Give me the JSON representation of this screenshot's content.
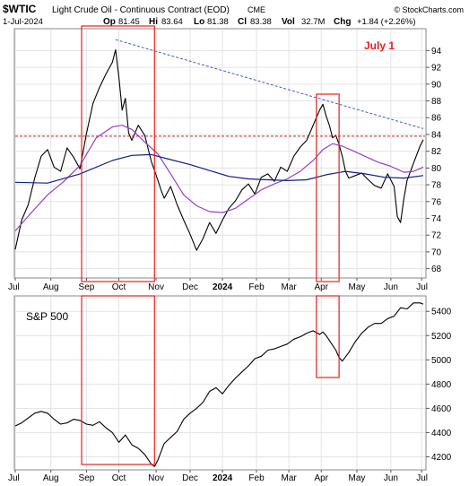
{
  "header": {
    "symbol": "$WTIC",
    "name": "Light Crude Oil - Continuous Contract (EOD)",
    "exchange": "CME",
    "copyright": "© StockCharts.com",
    "date": "1-Jul-2024",
    "open_label": "Op",
    "open": "81.45",
    "high_label": "Hi",
    "high": "83.64",
    "low_label": "Lo",
    "low": "81.38",
    "close_label": "Cl",
    "close": "83.38",
    "vol_label": "Vol",
    "vol": "32.7M",
    "chg_label": "Chg",
    "chg": "+1.84 (+2.26%)"
  },
  "annotation": {
    "label": "July 1",
    "color": "#e8201c"
  },
  "colors": {
    "price": "#000000",
    "ma50": "#9b3fc4",
    "ma200": "#0c1f87",
    "trendline": "#3b5bd9",
    "resistance": "#d42020",
    "box": "#e8201c"
  },
  "x_labels": [
    {
      "t": 0,
      "label": "Jul",
      "bold": false
    },
    {
      "t": 22,
      "label": "Aug",
      "bold": false
    },
    {
      "t": 44,
      "label": "Sep",
      "bold": false
    },
    {
      "t": 64,
      "label": "Oct",
      "bold": false
    },
    {
      "t": 87,
      "label": "Nov",
      "bold": false
    },
    {
      "t": 108,
      "label": "Dec",
      "bold": false
    },
    {
      "t": 128,
      "label": "2024",
      "bold": true
    },
    {
      "t": 149,
      "label": "Feb",
      "bold": false
    },
    {
      "t": 169,
      "label": "Mar",
      "bold": false
    },
    {
      "t": 189,
      "label": "Apr",
      "bold": false
    },
    {
      "t": 211,
      "label": "May",
      "bold": false
    },
    {
      "t": 232,
      "label": "Jun",
      "bold": false
    },
    {
      "t": 251,
      "label": "Jul",
      "bold": false
    }
  ],
  "chart_data": [
    {
      "type": "line",
      "title": "$WTIC Light Crude Oil - Continuous Contract (EOD)",
      "ylim": [
        67,
        96.5
      ],
      "yticks": [
        68,
        70,
        72,
        74,
        76,
        78,
        80,
        82,
        84,
        86,
        88,
        90,
        92,
        94
      ],
      "series": [
        {
          "name": "$WTIC",
          "role": "price",
          "x": [
            0,
            4,
            8,
            12,
            16,
            20,
            24,
            28,
            32,
            36,
            40,
            44,
            48,
            52,
            56,
            60,
            62,
            64,
            66,
            68,
            70,
            72,
            76,
            80,
            84,
            88,
            90,
            92,
            96,
            100,
            104,
            108,
            112,
            116,
            120,
            124,
            128,
            132,
            136,
            140,
            144,
            148,
            152,
            156,
            160,
            164,
            168,
            172,
            176,
            180,
            184,
            188,
            190,
            192,
            194,
            196,
            198,
            200,
            202,
            204,
            206,
            210,
            214,
            218,
            222,
            226,
            230,
            234,
            236,
            238,
            240,
            242,
            246,
            250,
            252
          ],
          "y": [
            70.3,
            73.8,
            75.6,
            78.8,
            81.4,
            82.2,
            80.1,
            79.6,
            82.4,
            81.3,
            79.9,
            84.1,
            87.7,
            89.6,
            91.2,
            92.6,
            94.1,
            90.8,
            86.9,
            88.3,
            84.2,
            83.3,
            85.1,
            83.9,
            80.8,
            78.6,
            77.4,
            76.4,
            77.8,
            75.6,
            73.8,
            72.1,
            70.2,
            71.6,
            73.5,
            72.2,
            73.8,
            75.2,
            76.1,
            77.4,
            78.1,
            76.9,
            78.9,
            79.3,
            78.4,
            80.1,
            79.6,
            81.4,
            82.5,
            83.3,
            85.1,
            86.9,
            87.6,
            86.2,
            85.1,
            83.6,
            83.9,
            82.8,
            81.4,
            79.6,
            78.8,
            79.1,
            79.4,
            78.6,
            77.9,
            77.6,
            79.3,
            77.8,
            74.2,
            73.5,
            76.3,
            78.5,
            80.6,
            82.6,
            83.38
          ]
        },
        {
          "name": "50-day MA",
          "role": "ma50",
          "x": [
            0,
            10,
            20,
            30,
            40,
            50,
            60,
            66,
            72,
            80,
            88,
            96,
            104,
            112,
            120,
            128,
            136,
            144,
            152,
            160,
            168,
            176,
            184,
            190,
            196,
            202,
            208,
            216,
            224,
            232,
            240,
            246,
            252
          ],
          "y": [
            72.5,
            74.7,
            76.8,
            78.4,
            80.3,
            83.6,
            84.9,
            85.1,
            84.6,
            83.1,
            81.7,
            79.3,
            76.8,
            75.5,
            74.8,
            74.7,
            75.2,
            76.3,
            77.4,
            78.1,
            78.7,
            79.6,
            80.9,
            82.2,
            82.9,
            82.6,
            82.1,
            81.4,
            80.7,
            80.2,
            79.5,
            79.6,
            80.1
          ]
        },
        {
          "name": "200-day MA",
          "role": "ma200",
          "x": [
            0,
            20,
            40,
            60,
            72,
            84,
            96,
            108,
            120,
            132,
            144,
            156,
            168,
            180,
            192,
            204,
            216,
            228,
            240,
            252
          ],
          "y": [
            78.3,
            78.2,
            79.3,
            80.9,
            81.5,
            81.6,
            81.0,
            80.4,
            79.7,
            79.0,
            78.7,
            78.6,
            78.5,
            78.6,
            79.2,
            79.6,
            79.3,
            78.9,
            78.8,
            79.1
          ]
        }
      ],
      "annotations": [
        {
          "kind": "trendline",
          "x": [
            62,
            252
          ],
          "y": [
            95.3,
            84.7
          ]
        },
        {
          "kind": "horizontal_line",
          "y": 83.8
        },
        {
          "kind": "box",
          "x": [
            41,
            86
          ]
        },
        {
          "kind": "box",
          "x": [
            186,
            200
          ]
        }
      ]
    },
    {
      "type": "line",
      "title": "S&P 500",
      "ylim": [
        4100,
        5520
      ],
      "yticks": [
        4200,
        4400,
        4600,
        4800,
        5000,
        5200,
        5400
      ],
      "series": [
        {
          "name": "S&P 500",
          "x": [
            0,
            4,
            8,
            12,
            16,
            20,
            24,
            28,
            32,
            36,
            40,
            44,
            48,
            52,
            56,
            60,
            64,
            68,
            72,
            76,
            80,
            84,
            86,
            88,
            92,
            96,
            100,
            104,
            108,
            112,
            116,
            120,
            124,
            128,
            132,
            136,
            140,
            144,
            148,
            152,
            156,
            160,
            164,
            168,
            172,
            176,
            180,
            184,
            188,
            190,
            192,
            194,
            196,
            198,
            200,
            202,
            206,
            210,
            214,
            218,
            222,
            226,
            230,
            234,
            238,
            242,
            246,
            250,
            252
          ],
          "y": [
            4455,
            4480,
            4520,
            4560,
            4575,
            4560,
            4510,
            4470,
            4480,
            4510,
            4500,
            4470,
            4460,
            4490,
            4440,
            4400,
            4320,
            4380,
            4300,
            4270,
            4220,
            4140,
            4120,
            4170,
            4310,
            4360,
            4410,
            4510,
            4560,
            4600,
            4650,
            4740,
            4770,
            4720,
            4790,
            4850,
            4900,
            4950,
            5010,
            5030,
            5080,
            5090,
            5110,
            5130,
            5170,
            5190,
            5220,
            5240,
            5210,
            5230,
            5200,
            5160,
            5120,
            5080,
            5020,
            4990,
            5060,
            5150,
            5220,
            5270,
            5300,
            5300,
            5340,
            5360,
            5430,
            5420,
            5470,
            5470,
            5460
          ]
        }
      ],
      "annotations": [
        {
          "kind": "box",
          "x": [
            41,
            86
          ]
        },
        {
          "kind": "box",
          "x": [
            186,
            200
          ]
        }
      ]
    }
  ]
}
